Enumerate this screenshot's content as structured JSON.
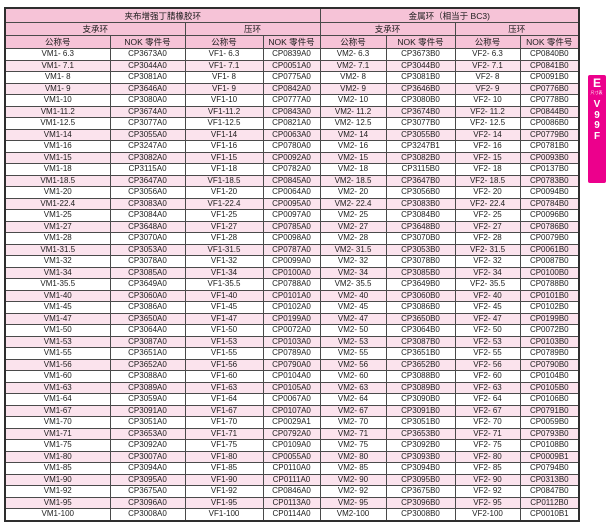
{
  "colors": {
    "header_pink": "#f6c3d7",
    "row_pink": "#fbe3ed",
    "tab_magenta": "#ec008c",
    "border_dark": "#4a4a4a"
  },
  "table": {
    "group_headers": [
      "夹布增强丁腈橡胶环",
      "金属环（相当于 BC3)"
    ],
    "sub_headers": [
      "支承环",
      "压环",
      "支承环",
      "压环"
    ],
    "col_headers": [
      "公称号",
      "NOK 零件号",
      "公称号",
      "NOK 零件号",
      "公称号",
      "NOK 零件号",
      "公称号",
      "NOK 零件号"
    ],
    "rows": [
      [
        "VM1- 6.3",
        "CP3673A0",
        "VF1- 6.3",
        "CP0839A0",
        "VM2- 6.3",
        "CP3673B0",
        "VF2- 6.3",
        "CP0840B0"
      ],
      [
        "VM1- 7.1",
        "CP3044A0",
        "VF1- 7.1",
        "CP0051A0",
        "VM2- 7.1",
        "CP3044B0",
        "VF2- 7.1",
        "CP0841B0"
      ],
      [
        "VM1- 8",
        "CP3081A0",
        "VF1- 8",
        "CP0775A0",
        "VM2- 8",
        "CP3081B0",
        "VF2- 8",
        "CP0091B0"
      ],
      [
        "VM1- 9",
        "CP3646A0",
        "VF1- 9",
        "CP0842A0",
        "VM2- 9",
        "CP3646B0",
        "VF2- 9",
        "CP0776B0"
      ],
      [
        "VM1-10",
        "CP3080A0",
        "VF1-10",
        "CP0777A0",
        "VM2- 10",
        "CP3080B0",
        "VF2- 10",
        "CP0778B0"
      ],
      [
        "VM1-11.2",
        "CP3674A0",
        "VF1-11.2",
        "CP0843A0",
        "VM2- 11.2",
        "CP3674B0",
        "VF2- 11.2",
        "CP0844B0"
      ],
      [
        "VM1-12.5",
        "CP3077A0",
        "VF1-12.5",
        "CP0821A0",
        "VM2- 12.5",
        "CP3077B0",
        "VF2- 12.5",
        "CP0086B0"
      ],
      [
        "VM1-14",
        "CP3055A0",
        "VF1-14",
        "CP0063A0",
        "VM2- 14",
        "CP3055B0",
        "VF2- 14",
        "CP0779B0"
      ],
      [
        "VM1-16",
        "CP3247A0",
        "VF1-16",
        "CP0780A0",
        "VM2- 16",
        "CP3247B1",
        "VF2- 16",
        "CP0781B0"
      ],
      [
        "VM1-15",
        "CP3082A0",
        "VF1-15",
        "CP0092A0",
        "VM2- 15",
        "CP3082B0",
        "VF2- 15",
        "CP0093B0"
      ],
      [
        "VM1-18",
        "CP3115A0",
        "VF1-18",
        "CP0782A0",
        "VM2- 18",
        "CP3115B0",
        "VF2- 18",
        "CP0137B0"
      ],
      [
        "VM1-18.5",
        "CP3647A0",
        "VF1-18.5",
        "CP0845A0",
        "VM2- 18.5",
        "CP3647B0",
        "VF2- 18.5",
        "CP0783B0"
      ],
      [
        "VM1-20",
        "CP3056A0",
        "VF1-20",
        "CP0064A0",
        "VM2- 20",
        "CP3056B0",
        "VF2- 20",
        "CP0094B0"
      ],
      [
        "VM1-22.4",
        "CP3083A0",
        "VF1-22.4",
        "CP0095A0",
        "VM2- 22.4",
        "CP3083B0",
        "VF2- 22.4",
        "CP0784B0"
      ],
      [
        "VM1-25",
        "CP3084A0",
        "VF1-25",
        "CP0097A0",
        "VM2- 25",
        "CP3084B0",
        "VF2- 25",
        "CP0096B0"
      ],
      [
        "VM1-27",
        "CP3648A0",
        "VF1-27",
        "CP0785A0",
        "VM2- 27",
        "CP3648B0",
        "VF2- 27",
        "CP0786B0"
      ],
      [
        "VM1-28",
        "CP3070A0",
        "VF1-28",
        "CP0098A0",
        "VM2- 28",
        "CP3070B0",
        "VF2- 28",
        "CP0079B0"
      ],
      [
        "VM1-31.5",
        "CP3053A0",
        "VF1-31.5",
        "CP0787A0",
        "VM2- 31.5",
        "CP3053B0",
        "VF2- 31.5",
        "CP0061B0"
      ],
      [
        "VM1-32",
        "CP3078A0",
        "VF1-32",
        "CP0099A0",
        "VM2- 32",
        "CP3078B0",
        "VF2- 32",
        "CP0087B0"
      ],
      [
        "VM1-34",
        "CP3085A0",
        "VF1-34",
        "CP0100A0",
        "VM2- 34",
        "CP3085B0",
        "VF2- 34",
        "CP0100B0"
      ],
      [
        "VM1-35.5",
        "CP3649A0",
        "VF1-35.5",
        "CP0788A0",
        "VM2- 35.5",
        "CP3649B0",
        "VF2- 35.5",
        "CP0788B0"
      ],
      [
        "VM1-40",
        "CP3060A0",
        "VF1-40",
        "CP0101A0",
        "VM2- 40",
        "CP3060B0",
        "VF2- 40",
        "CP0101B0"
      ],
      [
        "VM1-45",
        "CP3086A0",
        "VF1-45",
        "CP0102A0",
        "VM2- 45",
        "CP3086B0",
        "VF2- 45",
        "CP0102B0"
      ],
      [
        "VM1-47",
        "CP3650A0",
        "VF1-47",
        "CP0199A0",
        "VM2- 47",
        "CP3650B0",
        "VF2- 47",
        "CP0199B0"
      ],
      [
        "VM1-50",
        "CP3064A0",
        "VF1-50",
        "CP0072A0",
        "VM2- 50",
        "CP3064B0",
        "VF2- 50",
        "CP0072B0"
      ],
      [
        "VM1-53",
        "CP3087A0",
        "VF1-53",
        "CP0103A0",
        "VM2- 53",
        "CP3087B0",
        "VF2- 53",
        "CP0103B0"
      ],
      [
        "VM1-55",
        "CP3651A0",
        "VF1-55",
        "CP0789A0",
        "VM2- 55",
        "CP3651B0",
        "VF2- 55",
        "CP0789B0"
      ],
      [
        "VM1-56",
        "CP3652A0",
        "VF1-56",
        "CP0790A0",
        "VM2- 56",
        "CP3652B0",
        "VF2- 56",
        "CP0790B0"
      ],
      [
        "VM1-60",
        "CP3088A0",
        "VF1-60",
        "CP0104A0",
        "VM2- 60",
        "CP3088B0",
        "VF2- 60",
        "CP0104B0"
      ],
      [
        "VM1-63",
        "CP3089A0",
        "VF1-63",
        "CP0105A0",
        "VM2- 63",
        "CP3089B0",
        "VF2- 63",
        "CP0105B0"
      ],
      [
        "VM1-64",
        "CP3059A0",
        "VF1-64",
        "CP0067A0",
        "VM2- 64",
        "CP3090B0",
        "VF2- 64",
        "CP0106B0"
      ],
      [
        "VM1-67",
        "CP3091A0",
        "VF1-67",
        "CP0107A0",
        "VM2- 67",
        "CP3091B0",
        "VF2- 67",
        "CP0791B0"
      ],
      [
        "VM1-70",
        "CP3051A0",
        "VF1-70",
        "CP0029A1",
        "VM2- 70",
        "CP3051B0",
        "VF2- 70",
        "CP0059B0"
      ],
      [
        "VM1-71",
        "CP3653A0",
        "VF1-71",
        "CP0792A0",
        "VM2- 71",
        "CP3653B0",
        "VF2- 71",
        "CP0793B0"
      ],
      [
        "VM1-75",
        "CP3092A0",
        "VF1-75",
        "CP0109A0",
        "VM2- 75",
        "CP3092B0",
        "VF2- 75",
        "CP0108B0"
      ],
      [
        "VM1-80",
        "CP3007A0",
        "VF1-80",
        "CP0055A0",
        "VM2- 80",
        "CP3093B0",
        "VF2- 80",
        "CP0009B1"
      ],
      [
        "VM1-85",
        "CP3094A0",
        "VF1-85",
        "CP0110A0",
        "VM2- 85",
        "CP3094B0",
        "VF2- 85",
        "CP0794B0"
      ],
      [
        "VM1-90",
        "CP3095A0",
        "VF1-90",
        "CP0111A0",
        "VM2- 90",
        "CP3095B0",
        "VF2- 90",
        "CP0313B0"
      ],
      [
        "VM1-92",
        "CP3675A0",
        "VF1-92",
        "CP0846A0",
        "VM2- 92",
        "CP3675B0",
        "VF2- 92",
        "CP0847B0"
      ],
      [
        "VM1-95",
        "CP3096A0",
        "VF1-95",
        "CP0113A0",
        "VM2- 95",
        "CP3096B0",
        "VF2- 95",
        "CP0112B0"
      ],
      [
        "VM1-100",
        "CP3008A0",
        "VF1-100",
        "CP0114A0",
        "VM2-100",
        "CP3008B0",
        "VF2-100",
        "CP0010B1"
      ]
    ]
  },
  "side_tab": {
    "section_letter": "E",
    "section_label": "尺寸表",
    "code": [
      "V",
      "9",
      "9",
      "F"
    ]
  }
}
